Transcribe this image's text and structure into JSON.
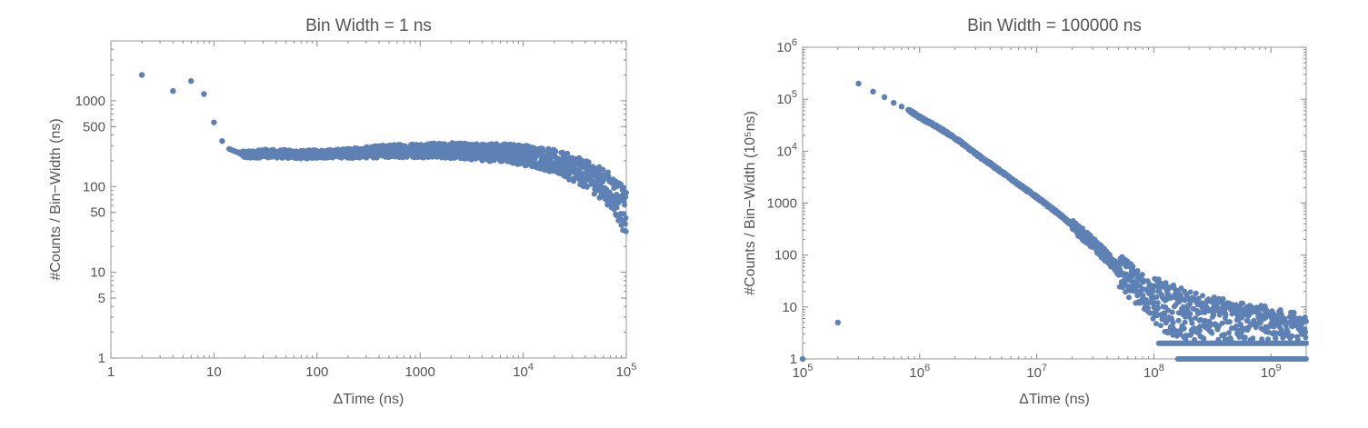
{
  "chart_data": [
    {
      "type": "scatter",
      "title": "Bin Width = 1 ns",
      "xlabel": "ΔTime (ns)",
      "ylabel": "#Counts / Bin−Width (ns)",
      "x_scale": "log",
      "y_scale": "log",
      "xlim": [
        1,
        100000
      ],
      "ylim": [
        1,
        5000
      ],
      "grid": false,
      "color": "#5e81b5",
      "x_ticks": [
        {
          "value": 1,
          "label": "1"
        },
        {
          "value": 10,
          "label": "10"
        },
        {
          "value": 100,
          "label": "100"
        },
        {
          "value": 1000,
          "label": "1000"
        },
        {
          "value": 10000,
          "base": "10",
          "exp": "4"
        },
        {
          "value": 100000,
          "base": "10",
          "exp": "5"
        }
      ],
      "y_ticks": [
        {
          "value": 1,
          "label": "1"
        },
        {
          "value": 5,
          "label": "5"
        },
        {
          "value": 10,
          "label": "10"
        },
        {
          "value": 50,
          "label": "50"
        },
        {
          "value": 100,
          "label": "100"
        },
        {
          "value": 500,
          "label": "500"
        },
        {
          "value": 1000,
          "label": "1000"
        }
      ],
      "x": [
        2,
        4,
        6,
        8,
        10,
        12,
        14,
        17,
        20,
        25,
        30,
        40,
        50,
        70,
        100,
        150,
        200,
        300,
        400,
        500,
        700,
        1000,
        1500,
        2000,
        3000,
        5000,
        7000,
        10000,
        15000,
        20000,
        30000,
        40000,
        50000,
        60000,
        70000,
        80000,
        90000,
        100000
      ],
      "y": [
        2000,
        1300,
        1700,
        1200,
        560,
        340,
        275,
        250,
        240,
        235,
        245,
        240,
        240,
        235,
        240,
        242,
        245,
        250,
        255,
        258,
        262,
        265,
        265,
        262,
        258,
        250,
        245,
        235,
        215,
        195,
        165,
        140,
        120,
        105,
        90,
        75,
        60,
        45
      ],
      "spread_note": "",
      "y_spread": [
        1,
        1,
        1,
        1,
        1,
        1,
        1,
        1,
        1.1,
        1.1,
        1.12,
        1.12,
        1.12,
        1.12,
        1.12,
        1.12,
        1.14,
        1.16,
        1.18,
        1.2,
        1.2,
        1.22,
        1.22,
        1.24,
        1.25,
        1.28,
        1.3,
        1.32,
        1.35,
        1.38,
        1.42,
        1.45,
        1.5,
        1.55,
        1.6,
        1.7,
        1.8,
        1.9
      ]
    },
    {
      "type": "scatter",
      "title": "Bin Width = 100000 ns",
      "xlabel": "ΔTime (ns)",
      "ylabel": "#Counts / Bin−Width (10⁵ns)",
      "x_scale": "log",
      "y_scale": "log",
      "xlim": [
        100000,
        2000000000
      ],
      "ylim": [
        1,
        1000000
      ],
      "grid": false,
      "color": "#5e81b5",
      "x_ticks": [
        {
          "value": 100000,
          "base": "10",
          "exp": "5"
        },
        {
          "value": 1000000,
          "base": "10",
          "exp": "6"
        },
        {
          "value": 10000000,
          "base": "10",
          "exp": "7"
        },
        {
          "value": 100000000,
          "base": "10",
          "exp": "8"
        },
        {
          "value": 1000000000,
          "base": "10",
          "exp": "9"
        }
      ],
      "y_ticks": [
        {
          "value": 1,
          "label": "1"
        },
        {
          "value": 10,
          "label": "10"
        },
        {
          "value": 100,
          "label": "100"
        },
        {
          "value": 1000,
          "label": "1000"
        },
        {
          "value": 10000,
          "base": "10",
          "exp": "4"
        },
        {
          "value": 100000,
          "base": "10",
          "exp": "5"
        },
        {
          "value": 1000000,
          "base": "10",
          "exp": "6"
        }
      ],
      "x": [
        100000,
        200000,
        300000,
        400000,
        500000,
        600000,
        700000,
        800000,
        1000000,
        1500000,
        2000000,
        3000000,
        5000000,
        7000000,
        10000000,
        15000000,
        20000000,
        30000000,
        40000000,
        50000000,
        60000000,
        70000000,
        80000000,
        100000000,
        150000000,
        200000000,
        300000000,
        500000000,
        700000000,
        1000000000,
        1500000000,
        2000000000
      ],
      "y": [
        1,
        5,
        200000,
        140000,
        110000,
        85000,
        72000,
        62000,
        45000,
        27000,
        18000,
        9000,
        4000,
        2300,
        1300,
        650,
        380,
        170,
        90,
        50,
        35,
        25,
        20,
        12,
        8,
        6,
        5,
        4,
        3.5,
        3,
        2.5,
        2.2
      ],
      "levels": [
        1,
        2
      ],
      "level_xlim": [
        [
          160000000,
          2000000000
        ],
        [
          110000000,
          2000000000
        ]
      ]
    }
  ]
}
